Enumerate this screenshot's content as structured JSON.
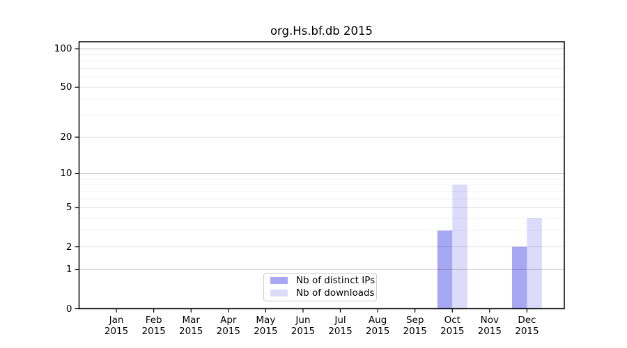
{
  "title": "org.Hs.bf.db 2015",
  "chart_data": {
    "type": "bar",
    "title": "org.Hs.bf.db 2015",
    "categories": [
      "Jan",
      "Feb",
      "Mar",
      "Apr",
      "May",
      "Jun",
      "Jul",
      "Aug",
      "Sep",
      "Oct",
      "Nov",
      "Dec"
    ],
    "x_year_label": "2015",
    "series": [
      {
        "name": "Nb of distinct IPs",
        "color": "#a7a7f4",
        "values": [
          0,
          0,
          0,
          0,
          0,
          0,
          0,
          0,
          0,
          3,
          0,
          2
        ]
      },
      {
        "name": "Nb of downloads",
        "color": "#dcdcfa",
        "values": [
          0,
          0,
          0,
          0,
          0,
          0,
          0,
          0,
          0,
          8,
          0,
          4
        ]
      }
    ],
    "y_axis": {
      "scale": "log1p",
      "ticks": [
        0,
        1,
        2,
        5,
        10,
        20,
        50,
        100
      ],
      "decade_ticks": [
        1,
        10,
        100
      ],
      "minor_ticks": [
        3,
        4,
        6,
        7,
        8,
        9,
        30,
        40,
        60,
        70,
        80,
        90
      ],
      "ylim": [
        0,
        113
      ]
    },
    "grid": true,
    "legend_position": "lower center"
  },
  "legend": {
    "items": [
      {
        "label": "Nb of distinct IPs",
        "color": "#a7a7f4"
      },
      {
        "label": "Nb of downloads",
        "color": "#dcdcfa"
      }
    ]
  },
  "colors": {
    "frame": "#000000",
    "background": "#ffffff",
    "grid_decade": "rgba(0,0,0,0.21)",
    "grid_major": "rgba(0,0,0,0.12)",
    "grid_minor": "rgba(0,0,0,0.055)"
  }
}
